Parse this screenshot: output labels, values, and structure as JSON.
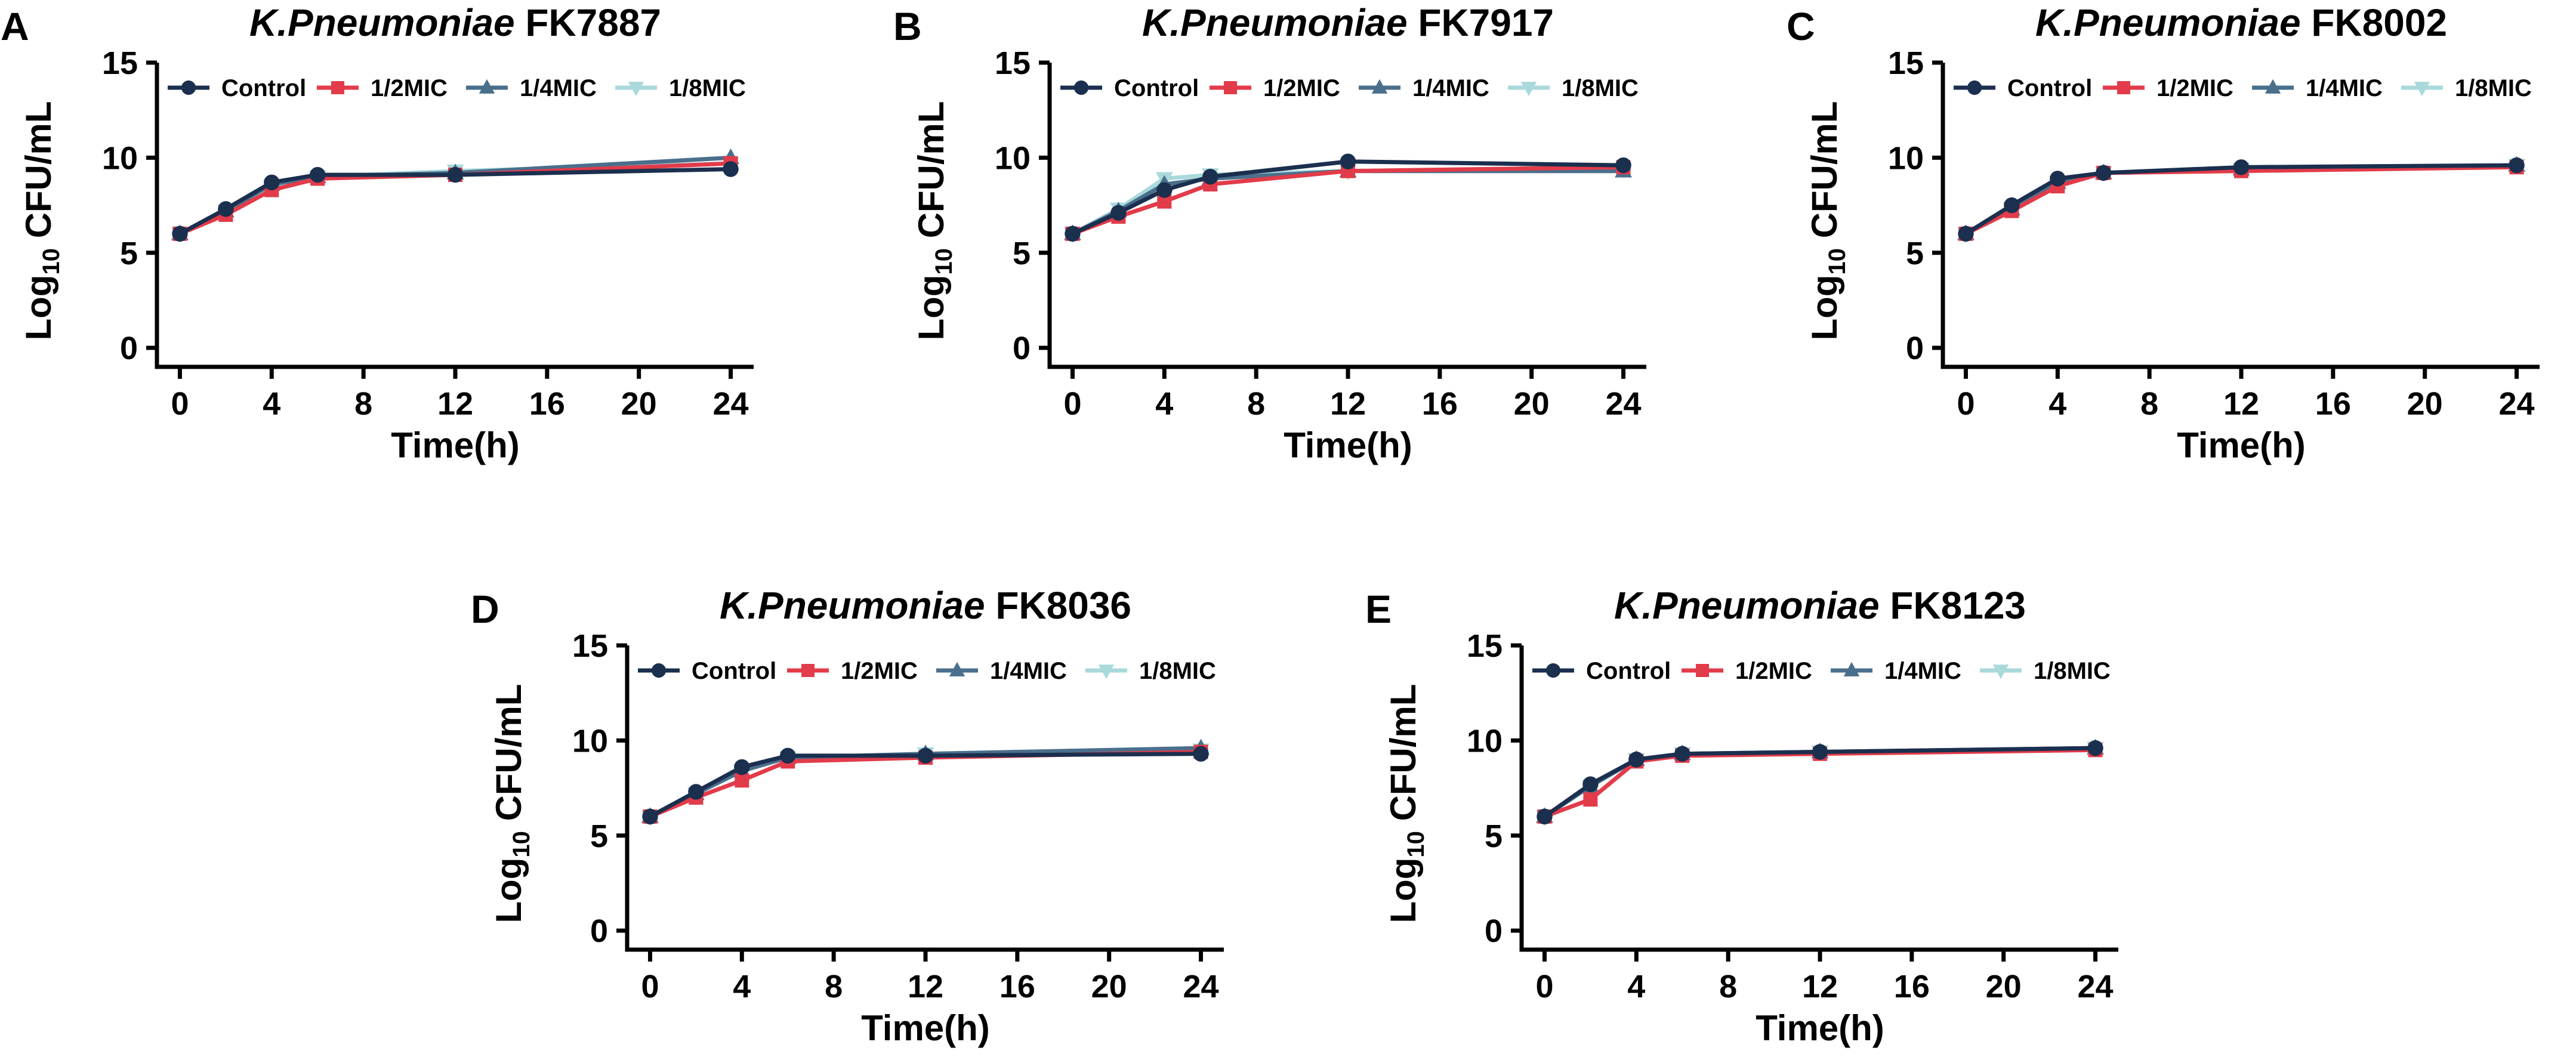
{
  "figure": {
    "colors": {
      "Control": "#1b2f4f",
      "1/2MIC": "#e23b4a",
      "1/4MIC": "#4a6f8c",
      "1/8MIC": "#a9d9db"
    },
    "markers": {
      "Control": "circle",
      "1/2MIC": "square",
      "1/4MIC": "triangle-up",
      "1/8MIC": "triangle-down"
    }
  },
  "chart_data": [
    {
      "type": "line",
      "panel": "A",
      "title_italic": "K.Pneumoniae",
      "title_strain": "FK7887",
      "xlabel": "Time(h)",
      "ylabel_prefix": "Log",
      "ylabel_sub": "10",
      "ylabel_suffix": "CFU/mL",
      "xticks": [
        0,
        4,
        8,
        12,
        16,
        20,
        24
      ],
      "yticks": [
        0,
        5,
        10,
        15
      ],
      "xlim": [
        -1,
        25
      ],
      "ylim": [
        -1,
        15
      ],
      "x": [
        0,
        2,
        4,
        6,
        12,
        24
      ],
      "series": [
        {
          "name": "Control",
          "values": [
            6.0,
            7.3,
            8.7,
            9.1,
            9.1,
            9.4
          ]
        },
        {
          "name": "1/2MIC",
          "values": [
            6.0,
            7.0,
            8.3,
            8.9,
            9.1,
            9.7
          ]
        },
        {
          "name": "1/4MIC",
          "values": [
            6.0,
            7.2,
            8.6,
            9.0,
            9.2,
            10.0
          ]
        },
        {
          "name": "1/8MIC",
          "values": [
            6.0,
            7.2,
            8.5,
            9.0,
            9.3,
            9.7
          ]
        }
      ]
    },
    {
      "type": "line",
      "panel": "B",
      "title_italic": "K.Pneumoniae",
      "title_strain": "FK7917",
      "xlabel": "Time(h)",
      "ylabel_prefix": "Log",
      "ylabel_sub": "10",
      "ylabel_suffix": "CFU/mL",
      "xticks": [
        0,
        4,
        8,
        12,
        16,
        20,
        24
      ],
      "yticks": [
        0,
        5,
        10,
        15
      ],
      "xlim": [
        -1,
        25
      ],
      "ylim": [
        -1,
        15
      ],
      "x": [
        0,
        2,
        4,
        6,
        12,
        24
      ],
      "series": [
        {
          "name": "Control",
          "values": [
            6.0,
            7.1,
            8.3,
            9.0,
            9.8,
            9.6
          ]
        },
        {
          "name": "1/2MIC",
          "values": [
            6.0,
            6.9,
            7.7,
            8.6,
            9.3,
            9.5
          ]
        },
        {
          "name": "1/4MIC",
          "values": [
            6.0,
            7.2,
            8.6,
            8.9,
            9.3,
            9.3
          ]
        },
        {
          "name": "1/8MIC",
          "values": [
            6.0,
            7.3,
            8.9,
            9.1,
            9.3,
            9.4
          ]
        }
      ]
    },
    {
      "type": "line",
      "panel": "C",
      "title_italic": "K.Pneumoniae",
      "title_strain": "FK8002",
      "xlabel": "Time(h)",
      "ylabel_prefix": "Log",
      "ylabel_sub": "10",
      "ylabel_suffix": "CFU/mL",
      "xticks": [
        0,
        4,
        8,
        12,
        16,
        20,
        24
      ],
      "yticks": [
        0,
        5,
        10,
        15
      ],
      "xlim": [
        -1,
        25
      ],
      "ylim": [
        -1,
        15
      ],
      "x": [
        0,
        2,
        4,
        6,
        12,
        24
      ],
      "series": [
        {
          "name": "Control",
          "values": [
            6.0,
            7.5,
            8.9,
            9.2,
            9.5,
            9.6
          ]
        },
        {
          "name": "1/2MIC",
          "values": [
            6.0,
            7.2,
            8.5,
            9.2,
            9.3,
            9.5
          ]
        },
        {
          "name": "1/4MIC",
          "values": [
            6.0,
            7.3,
            8.7,
            9.2,
            9.4,
            9.6
          ]
        },
        {
          "name": "1/8MIC",
          "values": [
            6.0,
            7.3,
            8.7,
            9.2,
            9.4,
            9.6
          ]
        }
      ]
    },
    {
      "type": "line",
      "panel": "D",
      "title_italic": "K.Pneumoniae",
      "title_strain": "FK8036",
      "xlabel": "Time(h)",
      "ylabel_prefix": "Log",
      "ylabel_sub": "10",
      "ylabel_suffix": "CFU/mL",
      "xticks": [
        0,
        4,
        8,
        12,
        16,
        20,
        24
      ],
      "yticks": [
        0,
        5,
        10,
        15
      ],
      "xlim": [
        -1,
        25
      ],
      "ylim": [
        -1,
        15
      ],
      "x": [
        0,
        2,
        4,
        6,
        12,
        24
      ],
      "series": [
        {
          "name": "Control",
          "values": [
            6.0,
            7.3,
            8.6,
            9.2,
            9.2,
            9.3
          ]
        },
        {
          "name": "1/2MIC",
          "values": [
            6.0,
            7.0,
            7.9,
            8.9,
            9.1,
            9.4
          ]
        },
        {
          "name": "1/4MIC",
          "values": [
            6.0,
            7.2,
            8.4,
            9.1,
            9.3,
            9.6
          ]
        },
        {
          "name": "1/8MIC",
          "values": [
            6.0,
            7.2,
            8.4,
            9.1,
            9.3,
            9.5
          ]
        }
      ]
    },
    {
      "type": "line",
      "panel": "E",
      "title_italic": "K.Pneumoniae",
      "title_strain": "FK8123",
      "xlabel": "Time(h)",
      "ylabel_prefix": "Log",
      "ylabel_sub": "10",
      "ylabel_suffix": "CFU/mL",
      "xticks": [
        0,
        4,
        8,
        12,
        16,
        20,
        24
      ],
      "yticks": [
        0,
        5,
        10,
        15
      ],
      "xlim": [
        -1,
        25
      ],
      "ylim": [
        -1,
        15
      ],
      "x": [
        0,
        2,
        4,
        6,
        12,
        24
      ],
      "series": [
        {
          "name": "Control",
          "values": [
            6.0,
            7.7,
            9.0,
            9.3,
            9.4,
            9.6
          ]
        },
        {
          "name": "1/2MIC",
          "values": [
            6.0,
            6.9,
            8.9,
            9.2,
            9.3,
            9.5
          ]
        },
        {
          "name": "1/4MIC",
          "values": [
            6.0,
            7.6,
            9.0,
            9.3,
            9.4,
            9.6
          ]
        },
        {
          "name": "1/8MIC",
          "values": [
            6.0,
            7.6,
            9.0,
            9.3,
            9.4,
            9.6
          ]
        }
      ]
    }
  ]
}
